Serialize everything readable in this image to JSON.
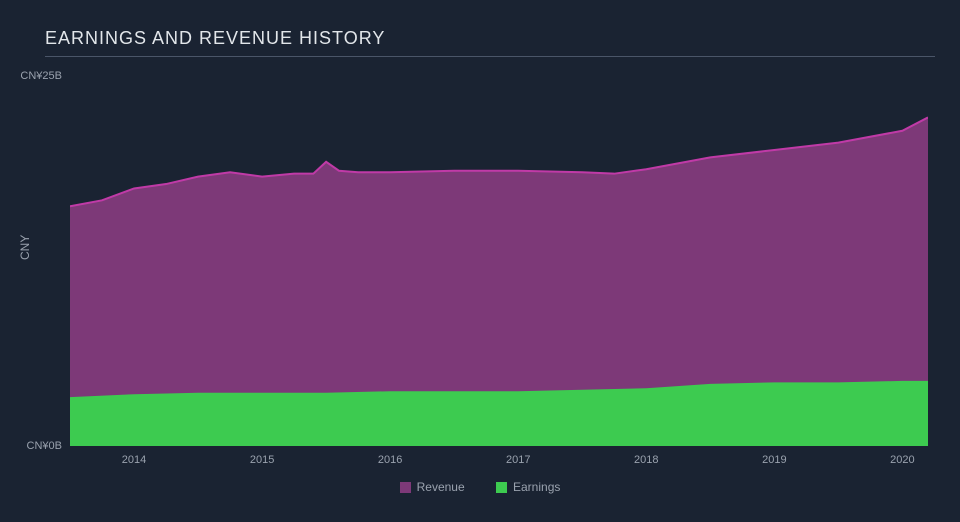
{
  "chart": {
    "type": "area",
    "title": "EARNINGS AND REVENUE HISTORY",
    "background_color": "#1a2332",
    "text_color": "#d0d4da",
    "muted_text_color": "#9aa2ae",
    "title_fontsize": 18,
    "tick_fontsize": 11,
    "y_axis_label": "CNY",
    "y_tick_top": "CN¥25B",
    "y_tick_bottom": "CN¥0B",
    "ylim": [
      0,
      25
    ],
    "x_ticks": [
      "2014",
      "2015",
      "2016",
      "2017",
      "2018",
      "2019",
      "2020"
    ],
    "x_start": 2013.5,
    "x_end": 2020.2,
    "underline_color": "#4a5568",
    "series": {
      "revenue": {
        "label": "Revenue",
        "fill_color": "#7d3978",
        "stroke_color": "#c03aa7",
        "stroke_width": 2,
        "points": [
          {
            "x": 2013.5,
            "y": 16.2
          },
          {
            "x": 2013.75,
            "y": 16.6
          },
          {
            "x": 2014.0,
            "y": 17.4
          },
          {
            "x": 2014.25,
            "y": 17.7
          },
          {
            "x": 2014.5,
            "y": 18.2
          },
          {
            "x": 2014.75,
            "y": 18.5
          },
          {
            "x": 2015.0,
            "y": 18.2
          },
          {
            "x": 2015.25,
            "y": 18.4
          },
          {
            "x": 2015.4,
            "y": 18.4
          },
          {
            "x": 2015.5,
            "y": 19.2
          },
          {
            "x": 2015.6,
            "y": 18.6
          },
          {
            "x": 2015.75,
            "y": 18.5
          },
          {
            "x": 2016.0,
            "y": 18.5
          },
          {
            "x": 2016.5,
            "y": 18.6
          },
          {
            "x": 2017.0,
            "y": 18.6
          },
          {
            "x": 2017.5,
            "y": 18.5
          },
          {
            "x": 2017.75,
            "y": 18.4
          },
          {
            "x": 2018.0,
            "y": 18.7
          },
          {
            "x": 2018.5,
            "y": 19.5
          },
          {
            "x": 2019.0,
            "y": 20.0
          },
          {
            "x": 2019.5,
            "y": 20.5
          },
          {
            "x": 2020.0,
            "y": 21.3
          },
          {
            "x": 2020.2,
            "y": 22.2
          }
        ]
      },
      "earnings": {
        "label": "Earnings",
        "fill_color": "#3dcb50",
        "stroke_color": "#3dcb50",
        "stroke_width": 1,
        "points": [
          {
            "x": 2013.5,
            "y": 3.3
          },
          {
            "x": 2014.0,
            "y": 3.5
          },
          {
            "x": 2014.5,
            "y": 3.6
          },
          {
            "x": 2015.0,
            "y": 3.6
          },
          {
            "x": 2015.5,
            "y": 3.6
          },
          {
            "x": 2016.0,
            "y": 3.7
          },
          {
            "x": 2016.5,
            "y": 3.7
          },
          {
            "x": 2017.0,
            "y": 3.7
          },
          {
            "x": 2017.5,
            "y": 3.8
          },
          {
            "x": 2018.0,
            "y": 3.9
          },
          {
            "x": 2018.5,
            "y": 4.2
          },
          {
            "x": 2019.0,
            "y": 4.3
          },
          {
            "x": 2019.5,
            "y": 4.3
          },
          {
            "x": 2020.0,
            "y": 4.4
          },
          {
            "x": 2020.2,
            "y": 4.4
          }
        ]
      }
    },
    "legend_order": [
      "revenue",
      "earnings"
    ]
  }
}
